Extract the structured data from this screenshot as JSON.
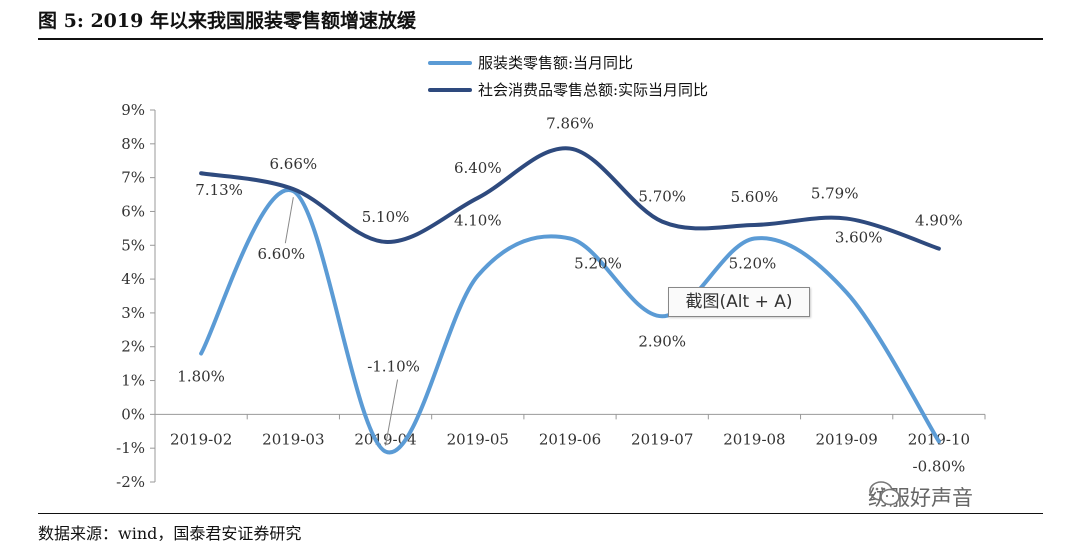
{
  "figure": {
    "title": "图 5:   2019 年以来我国服装零售额增速放缓",
    "source": "数据来源：wind，国泰君安证券研究"
  },
  "tooltip": {
    "text": "截图(Alt + A)"
  },
  "watermark": {
    "text": "纺服好声音",
    "icon": "wechat-icon"
  },
  "chart_data": {
    "type": "line",
    "categories": [
      "2019-02",
      "2019-03",
      "2019-04",
      "2019-05",
      "2019-06",
      "2019-07",
      "2019-08",
      "2019-09",
      "2019-10"
    ],
    "yticks": [
      "-2%",
      "-1%",
      "0%",
      "1%",
      "2%",
      "3%",
      "4%",
      "5%",
      "6%",
      "7%",
      "8%",
      "9%"
    ],
    "ylim": [
      -2,
      9
    ],
    "smooth": true,
    "grid": false,
    "legend_placement": "top-center",
    "series": [
      {
        "name": "服装类零售额:当月同比",
        "color": "#5b9bd5",
        "values": [
          1.8,
          6.6,
          -1.1,
          4.1,
          5.2,
          2.9,
          5.2,
          3.6,
          -0.8
        ],
        "labels": [
          "1.80%",
          "6.60%",
          "-1.10%",
          "4.10%",
          "5.20%",
          "2.90%",
          "5.20%",
          "3.60%",
          "-0.80%"
        ]
      },
      {
        "name": "社会消费品零售总额:实际当月同比",
        "color": "#2e4a7e",
        "values": [
          7.13,
          6.66,
          5.1,
          6.4,
          7.86,
          5.7,
          5.6,
          5.79,
          4.9
        ],
        "labels": [
          "7.13%",
          "6.66%",
          "5.10%",
          "6.40%",
          "7.86%",
          "5.70%",
          "5.60%",
          "5.79%",
          "4.90%"
        ]
      }
    ]
  }
}
